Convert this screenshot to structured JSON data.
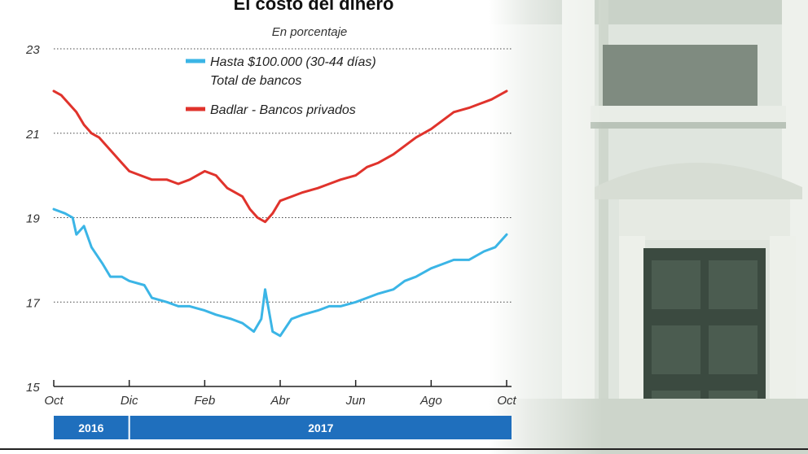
{
  "colors": {
    "series1": "#3bb5e6",
    "series2": "#e0332c",
    "band": "#1f6fbd",
    "grid": "#444444"
  },
  "chart_data": {
    "type": "line",
    "title": "El costo del dinero",
    "subtitle": "En porcentaje",
    "ylim": [
      15,
      23
    ],
    "yticks": [
      15,
      17,
      19,
      21,
      23
    ],
    "ytick_labels": [
      "15",
      "17",
      "19",
      "21",
      "23"
    ],
    "xlim": [
      0,
      12
    ],
    "xticks": [
      0,
      2,
      4,
      6,
      8,
      10,
      12
    ],
    "xtick_labels": [
      "Oct",
      "Dic",
      "Feb",
      "Abr",
      "Jun",
      "Ago",
      "Oct"
    ],
    "year_bands": [
      {
        "label": "2016",
        "start": 0,
        "end": 2
      },
      {
        "label": "2017",
        "start": 2,
        "end": 12
      }
    ],
    "series": [
      {
        "name": "Hasta $100.000 (30-44 días) Total de bancos",
        "legend_line1": "Hasta $100.000 (30-44 días)",
        "legend_line2": "Total de bancos",
        "x": [
          0,
          0.3,
          0.5,
          0.6,
          0.8,
          1.0,
          1.3,
          1.5,
          1.8,
          2.0,
          2.4,
          2.6,
          3.0,
          3.3,
          3.6,
          4.0,
          4.3,
          4.7,
          5.0,
          5.3,
          5.5,
          5.6,
          5.8,
          6.0,
          6.3,
          6.6,
          7.0,
          7.3,
          7.6,
          8.0,
          8.3,
          8.6,
          9.0,
          9.3,
          9.6,
          10.0,
          10.3,
          10.6,
          11.0,
          11.4,
          11.7,
          12.0
        ],
        "values": [
          19.2,
          19.1,
          19.0,
          18.6,
          18.8,
          18.3,
          17.9,
          17.6,
          17.6,
          17.5,
          17.4,
          17.1,
          17.0,
          16.9,
          16.9,
          16.8,
          16.7,
          16.6,
          16.5,
          16.3,
          16.6,
          17.3,
          16.3,
          16.2,
          16.6,
          16.7,
          16.8,
          16.9,
          16.9,
          17.0,
          17.1,
          17.2,
          17.3,
          17.5,
          17.6,
          17.8,
          17.9,
          18.0,
          18.0,
          18.2,
          18.3,
          18.6
        ]
      },
      {
        "name": "Badlar - Bancos privados",
        "legend_line1": "Badlar - Bancos privados",
        "x": [
          0,
          0.2,
          0.4,
          0.6,
          0.8,
          1.0,
          1.2,
          1.5,
          1.8,
          2.0,
          2.3,
          2.6,
          3.0,
          3.3,
          3.6,
          4.0,
          4.3,
          4.6,
          5.0,
          5.2,
          5.4,
          5.6,
          5.8,
          6.0,
          6.3,
          6.6,
          7.0,
          7.3,
          7.6,
          8.0,
          8.3,
          8.6,
          9.0,
          9.3,
          9.6,
          10.0,
          10.3,
          10.6,
          11.0,
          11.3,
          11.6,
          12.0
        ],
        "values": [
          22.0,
          21.9,
          21.7,
          21.5,
          21.2,
          21.0,
          20.9,
          20.6,
          20.3,
          20.1,
          20.0,
          19.9,
          19.9,
          19.8,
          19.9,
          20.1,
          20.0,
          19.7,
          19.5,
          19.2,
          19.0,
          18.9,
          19.1,
          19.4,
          19.5,
          19.6,
          19.7,
          19.8,
          19.9,
          20.0,
          20.2,
          20.3,
          20.5,
          20.7,
          20.9,
          21.1,
          21.3,
          21.5,
          21.6,
          21.7,
          21.8,
          22.0
        ]
      }
    ]
  }
}
